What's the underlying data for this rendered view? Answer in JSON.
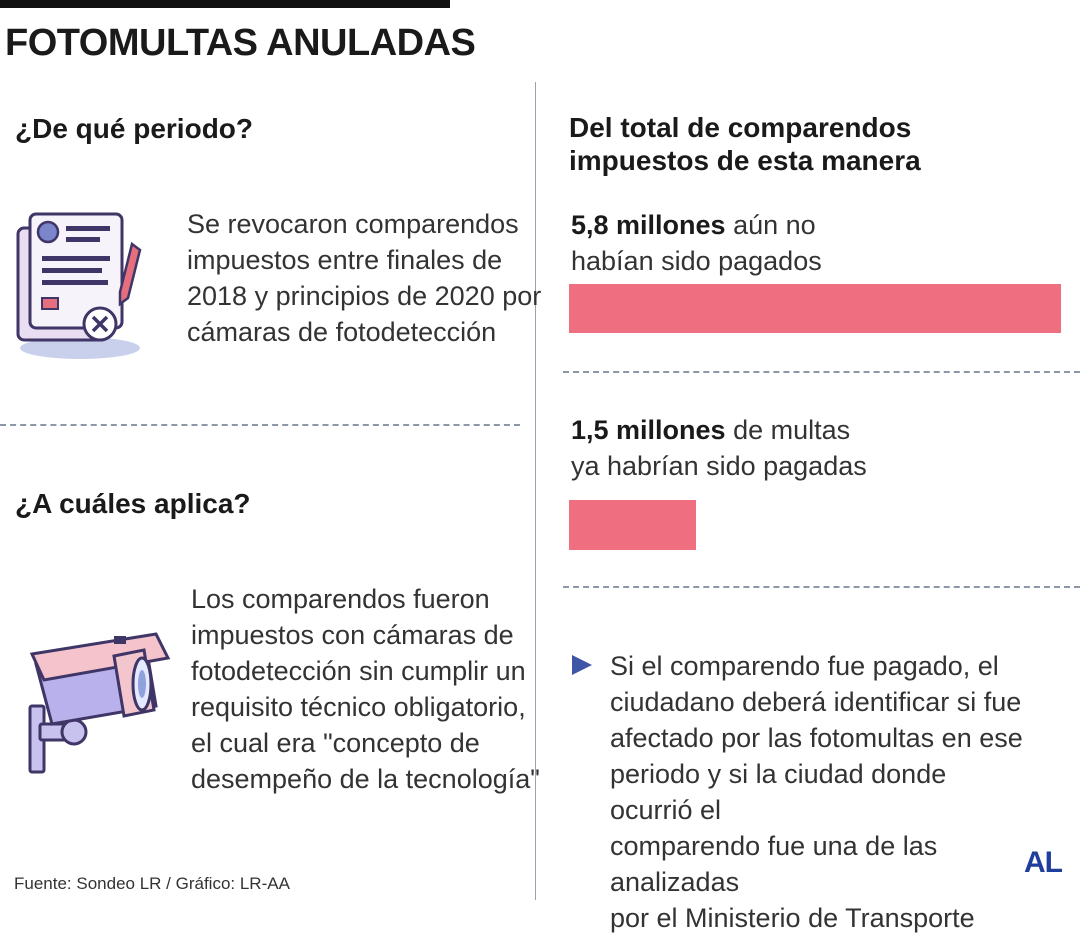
{
  "title": "FOTOMULTAS ANULADAS",
  "left": {
    "section1": {
      "heading": "¿De qué periodo?",
      "lines": [
        "Se revocaron comparendos",
        "impuestos entre finales de",
        "2018 y principios de 2020 por",
        "cámaras de fotodetección"
      ],
      "icon": "document-reject-icon"
    },
    "section2": {
      "heading": "¿A cuáles aplica?",
      "lines": [
        "Los comparendos fueron",
        "impuestos con cámaras de",
        "fotodetección sin cumplir un",
        "requisito técnico obligatorio,",
        "el cual era \"concepto de",
        "desempeño de la tecnología\""
      ],
      "icon": "security-camera-icon"
    }
  },
  "right": {
    "heading_lines": [
      "Del total de comparendos",
      "impuestos de esta manera"
    ],
    "stat1": {
      "bold": "5,8 millones",
      "rest": " aún no",
      "line2": "habían sido pagados",
      "value": 5.8
    },
    "stat2": {
      "bold": "1,5 millones",
      "rest": " de multas",
      "line2": "ya habrían sido pagadas",
      "value": 1.5
    },
    "note_lines": [
      "Si el comparendo fue pagado, el",
      "ciudadano deberá identificar si fue",
      "afectado por las fotomultas en ese",
      "periodo y si la ciudad donde ocurrió el",
      "comparendo fue una de las analizadas",
      "por el Ministerio de Transporte"
    ]
  },
  "source": "Fuente: Sondeo LR / Gráfico: LR-AA",
  "logo": "AL",
  "colors": {
    "bar": "#ef6f80",
    "accent": "#3f55a6",
    "logo": "#1f3f9c"
  }
}
